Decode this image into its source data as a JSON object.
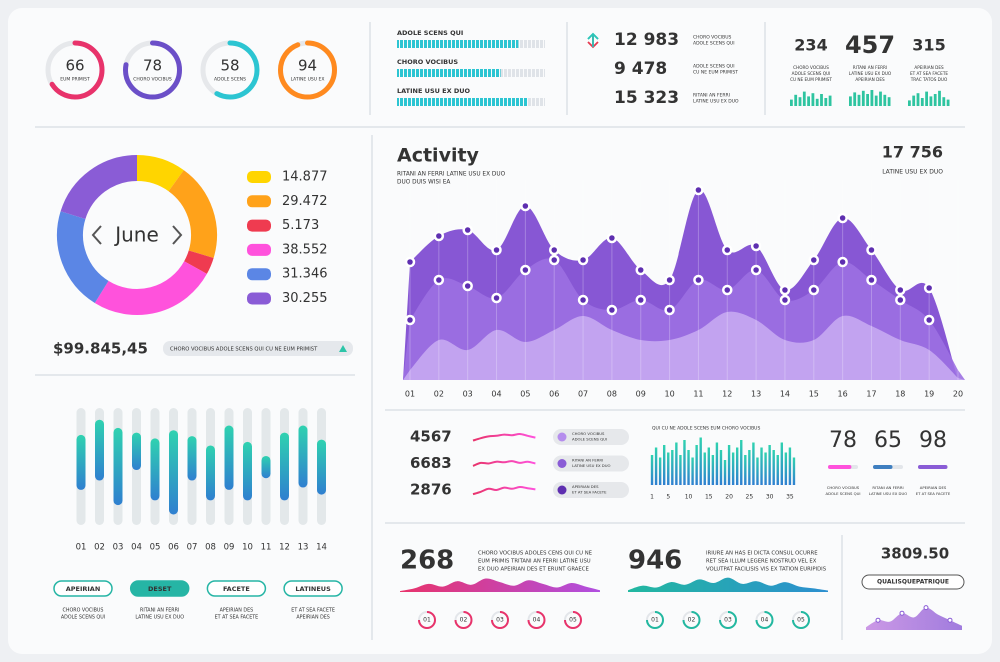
{
  "gauges": {
    "range": [
      0,
      100
    ],
    "items": [
      {
        "value": 66,
        "label": "EUM PRIMIST",
        "color": "#e8336b"
      },
      {
        "value": 78,
        "label": "CHORO VOCIBUS",
        "color": "#6b4fc8"
      },
      {
        "value": 58,
        "label": "ADOLE SCENS",
        "color": "#2cc5d2"
      },
      {
        "value": 94,
        "label": "LATINE USU EX",
        "color": "#ff8a1f"
      }
    ]
  },
  "progress": {
    "range": [
      0,
      100
    ],
    "items": [
      {
        "label": "ADOLE SCENS QUI",
        "value": 82
      },
      {
        "label": "CHORO VOCIBUS",
        "value": 70
      },
      {
        "label": "LATINE USU EX DUO",
        "value": 88
      }
    ]
  },
  "stats": [
    {
      "value": "12 983",
      "direction": "up",
      "lines": [
        "CHORO VOCIBUS",
        "ADOLE SCENS QUI"
      ]
    },
    {
      "value": "9 478",
      "direction": "down",
      "lines": [
        "ADOLE SCENS QUI",
        "CU NE EUM PRIMIST"
      ]
    },
    {
      "value": "15 323",
      "direction": "up",
      "lines": [
        "RITANI AN FERRI",
        "LATINE USU EX DUO"
      ]
    }
  ],
  "minis": {
    "range": [
      0,
      100
    ],
    "items": [
      {
        "value": 234,
        "color": "#333333",
        "lines": [
          "CHORO VOCIBUS",
          "ADOLE SCENS QUI",
          "CU NE EUM PRIMIST"
        ],
        "bars": [
          40,
          70,
          55,
          90,
          60,
          80,
          45,
          75,
          50,
          65
        ]
      },
      {
        "value": 457,
        "color": "#e8336b",
        "lines": [
          "RITANI AN FERRI",
          "LATINE USU EX DUO",
          "APEIRIAN DES"
        ],
        "bars": [
          60,
          85,
          70,
          95,
          75,
          100,
          65,
          90,
          70,
          55
        ]
      },
      {
        "value": 315,
        "color": "#333333",
        "lines": [
          "APEIRIAN DES",
          "ET AT SEA FACETE",
          "TRAC TATOS DUO"
        ],
        "bars": [
          35,
          65,
          80,
          50,
          90,
          60,
          75,
          95,
          55,
          40
        ]
      }
    ]
  },
  "donut": {
    "center_label": "June",
    "items": [
      {
        "value": 14.877,
        "color": "#ffd500"
      },
      {
        "value": 29.472,
        "color": "#ffa21a"
      },
      {
        "value": 5.173,
        "color": "#ef3b50"
      },
      {
        "value": 38.552,
        "color": "#ff52dc"
      },
      {
        "value": 31.346,
        "color": "#5b86e5"
      },
      {
        "value": 30.255,
        "color": "#8a5cd6"
      }
    ],
    "total": "$99.845,45",
    "note": "CHORO VOCIBUS ADOLE SCENS QUI CU NE EUM PRIMIST"
  },
  "activity": {
    "title": "Activity",
    "subtitle_lines": [
      "RITANI AN FERRI LATINE USU EX DUO",
      "DUO DUIS WISI EA"
    ],
    "total": "17 756",
    "total_label": "LATINE USU EX DUO",
    "categories": [
      "01",
      "02",
      "03",
      "04",
      "05",
      "06",
      "07",
      "08",
      "09",
      "10",
      "11",
      "12",
      "13",
      "14",
      "15",
      "16",
      "17",
      "18",
      "19",
      "20"
    ],
    "ylim": [
      0,
      100
    ],
    "series": [
      {
        "color": "#7a45cf",
        "values": [
          59,
          72,
          75,
          65,
          87,
          65,
          60,
          71,
          55,
          50,
          95,
          65,
          67,
          45,
          60,
          81,
          65,
          45,
          46,
          0
        ]
      },
      {
        "color": "#9c70e2",
        "values": [
          30,
          50,
          47,
          41,
          55,
          60,
          40,
          35,
          40,
          35,
          50,
          45,
          55,
          40,
          45,
          59,
          50,
          40,
          30,
          5
        ]
      },
      {
        "color": "#c6a8f2",
        "values": [
          5,
          20,
          15,
          25,
          19,
          25,
          32,
          25,
          20,
          20,
          25,
          34,
          30,
          20,
          20,
          32,
          27,
          20,
          15,
          1
        ]
      }
    ]
  },
  "ranges": {
    "range": [
      0,
      100
    ],
    "categories": [
      "01",
      "02",
      "03",
      "04",
      "05",
      "06",
      "07",
      "08",
      "09",
      "10",
      "11",
      "12",
      "13",
      "14"
    ],
    "items": [
      {
        "low": 30,
        "high": 77
      },
      {
        "low": 38,
        "high": 90
      },
      {
        "low": 17,
        "high": 83
      },
      {
        "low": 47,
        "high": 79
      },
      {
        "low": 21,
        "high": 74
      },
      {
        "low": 9,
        "high": 81
      },
      {
        "low": 38,
        "high": 76
      },
      {
        "low": 21,
        "high": 68
      },
      {
        "low": 30,
        "high": 85
      },
      {
        "low": 21,
        "high": 71
      },
      {
        "low": 40,
        "high": 59
      },
      {
        "low": 21,
        "high": 79
      },
      {
        "low": 32,
        "high": 85
      },
      {
        "low": 26,
        "high": 73
      }
    ]
  },
  "buttons": [
    {
      "label": "APEIRIAN",
      "active": false,
      "lines": [
        "CHORO VOCIBUS",
        "ADOLE SCENS QUI"
      ]
    },
    {
      "label": "DESET",
      "active": true,
      "lines": [
        "RITANI AN FERRI",
        "LATINE USU EX DUO"
      ]
    },
    {
      "label": "FACETE",
      "active": false,
      "lines": [
        "APEIRIAN DES",
        "ET AT SEA FACETE"
      ]
    },
    {
      "label": "LATINEUS",
      "active": false,
      "lines": [
        "ET AT SEA FACETE",
        "APEIRIAN DES"
      ]
    }
  ],
  "sparks": {
    "range": [
      0,
      100
    ],
    "items": [
      {
        "value": 4567,
        "values": [
          20,
          40,
          55,
          60,
          70,
          65,
          75,
          60,
          45
        ]
      },
      {
        "value": 6683,
        "values": [
          30,
          55,
          50,
          65,
          60,
          70,
          55,
          65,
          50
        ]
      },
      {
        "value": 2876,
        "values": [
          15,
          35,
          60,
          50,
          70,
          60,
          75,
          65,
          55
        ]
      }
    ]
  },
  "chips": [
    {
      "color": "#b58ded",
      "lines": [
        "CHORO VOCIBUS",
        "ADOLE SCENS QUI"
      ]
    },
    {
      "color": "#8a5cd6",
      "lines": [
        "RITANI AN FERRI",
        "LATINE USU EX DUO"
      ]
    },
    {
      "color": "#5e2fb0",
      "lines": [
        "APEIRIAN DES",
        "ET AT SEA FACETE"
      ]
    }
  ],
  "barchart": {
    "title": "QUI CU NE ADOLE SCENS EUM CHORO VOCIBUS",
    "xlim": [
      0.5,
      36.5
    ],
    "ylim": [
      0,
      100
    ],
    "x": [
      1,
      2,
      3,
      4,
      5,
      6,
      7,
      8,
      9,
      10,
      11,
      12,
      13,
      14,
      15,
      16,
      17,
      18,
      19,
      20,
      21,
      22,
      23,
      24,
      25,
      26,
      27,
      28,
      29,
      30,
      31,
      32,
      33,
      34,
      35,
      36
    ],
    "values": [
      60,
      75,
      55,
      80,
      65,
      70,
      85,
      60,
      90,
      70,
      55,
      80,
      95,
      65,
      75,
      60,
      85,
      70,
      50,
      80,
      65,
      75,
      90,
      60,
      70,
      85,
      55,
      75,
      65,
      80,
      70,
      60,
      85,
      65,
      75,
      55
    ],
    "xticks": [
      1,
      5,
      10,
      15,
      20,
      25,
      30,
      35
    ]
  },
  "scores": {
    "range": [
      0,
      100
    ],
    "items": [
      {
        "value": 78,
        "color": "#ff52dc",
        "lines": [
          "CHORO VOCIBUS",
          "ADOLE SCENS QUI"
        ]
      },
      {
        "value": 65,
        "color": "#3f7fc0",
        "lines": [
          "RITANI AN FERRI",
          "LATINE USU EX DUO"
        ]
      },
      {
        "value": 98,
        "color": "#8a5cd6",
        "lines": [
          "APEIRIAN DES",
          "ET AT SEA FACETE"
        ]
      }
    ]
  },
  "footers": {
    "range": [
      0,
      100
    ],
    "items": [
      {
        "value": 268,
        "colors": [
          "#e8336b",
          "#b04fe0"
        ],
        "lines": [
          "CHORO VOCIBUS ADOLES CENS QUI CU NE",
          "EUM PRIMIS TRITANI AN FERRI LATINE USU",
          "EX DUO APEIRIAN DES ET ERUNT GRAECE"
        ],
        "wave": [
          5,
          20,
          45,
          30,
          60,
          40,
          75,
          55,
          35,
          65,
          45,
          25,
          50,
          30,
          10
        ],
        "steps": [
          "01",
          "02",
          "03",
          "04",
          "05"
        ]
      },
      {
        "value": 946,
        "colors": [
          "#22b8a0",
          "#2c8fd0"
        ],
        "lines": [
          "IRIURE AN HAS EI DICTA CONSUL OCURRE",
          "RET SEA ILLUM LEGERE NOSTRUD VEL EX",
          "VOLUTPAT FACILISIS VIS EX TATION EURIPIDIS"
        ],
        "wave": [
          10,
          35,
          25,
          55,
          40,
          70,
          50,
          80,
          45,
          60,
          35,
          55,
          30,
          20,
          8
        ],
        "steps": [
          "01",
          "02",
          "03",
          "04",
          "05"
        ]
      }
    ]
  },
  "final": {
    "value": "3809.50",
    "tag": "QUALISQUEPATRIQUE",
    "range": [
      0,
      100
    ],
    "values": [
      10,
      35,
      30,
      60,
      45,
      80,
      55,
      35,
      15
    ]
  }
}
